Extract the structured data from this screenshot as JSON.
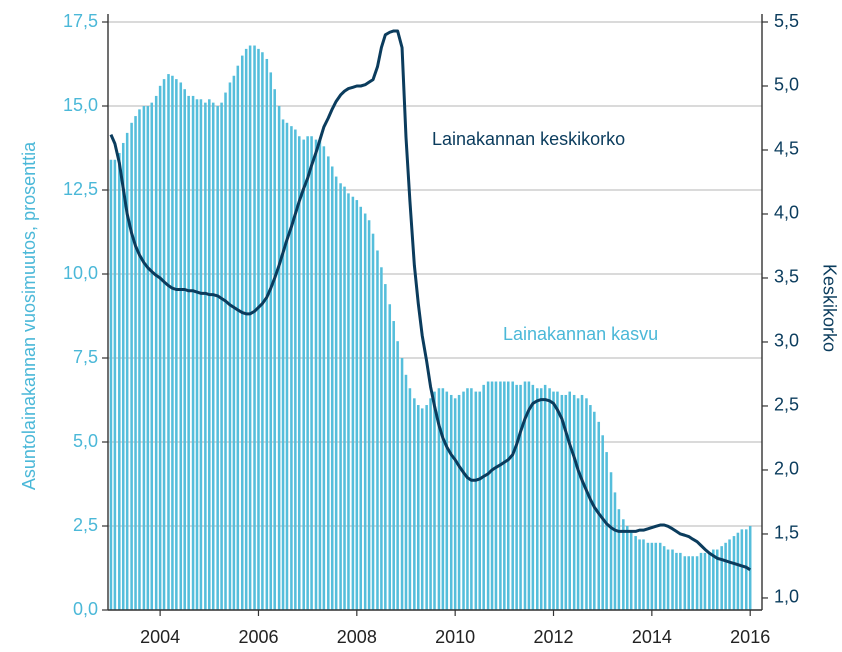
{
  "chart_data": {
    "type": "bar_line",
    "y_label": "Asuntolainakannan vuosimuutos, prosenttia",
    "y2_label": "Keskikorko",
    "annotations": [
      "Lainakannan keskikorko",
      "Lainakannan kasvu"
    ],
    "x": [
      2003,
      2003.08,
      2003.17,
      2003.25,
      2003.33,
      2003.42,
      2003.5,
      2003.58,
      2003.67,
      2003.75,
      2003.83,
      2003.92,
      2004,
      2004.08,
      2004.17,
      2004.25,
      2004.33,
      2004.42,
      2004.5,
      2004.58,
      2004.67,
      2004.75,
      2004.83,
      2004.92,
      2005,
      2005.08,
      2005.17,
      2005.25,
      2005.33,
      2005.42,
      2005.5,
      2005.58,
      2005.67,
      2005.75,
      2005.83,
      2005.92,
      2006,
      2006.08,
      2006.17,
      2006.25,
      2006.33,
      2006.42,
      2006.5,
      2006.58,
      2006.67,
      2006.75,
      2006.83,
      2006.92,
      2007,
      2007.08,
      2007.17,
      2007.25,
      2007.33,
      2007.42,
      2007.5,
      2007.58,
      2007.67,
      2007.75,
      2007.83,
      2007.92,
      2008,
      2008.08,
      2008.17,
      2008.25,
      2008.33,
      2008.42,
      2008.5,
      2008.58,
      2008.67,
      2008.75,
      2008.83,
      2008.92,
      2009,
      2009.08,
      2009.17,
      2009.25,
      2009.33,
      2009.42,
      2009.5,
      2009.58,
      2009.67,
      2009.75,
      2009.83,
      2009.92,
      2010,
      2010.08,
      2010.17,
      2010.25,
      2010.33,
      2010.42,
      2010.5,
      2010.58,
      2010.67,
      2010.75,
      2010.83,
      2010.92,
      2011,
      2011.08,
      2011.17,
      2011.25,
      2011.33,
      2011.42,
      2011.5,
      2011.58,
      2011.67,
      2011.75,
      2011.83,
      2011.92,
      2012,
      2012.08,
      2012.17,
      2012.25,
      2012.33,
      2012.42,
      2012.5,
      2012.58,
      2012.67,
      2012.75,
      2012.83,
      2012.92,
      2013,
      2013.08,
      2013.17,
      2013.25,
      2013.33,
      2013.42,
      2013.5,
      2013.58,
      2013.67,
      2013.75,
      2013.83,
      2013.92,
      2014,
      2014.08,
      2014.17,
      2014.25,
      2014.33,
      2014.42,
      2014.5,
      2014.58,
      2014.67,
      2014.75,
      2014.83,
      2014.92,
      2015,
      2015.08,
      2015.17,
      2015.25,
      2015.33,
      2015.42,
      2015.5,
      2015.58,
      2015.67,
      2015.75,
      2015.83,
      2015.92,
      2016
    ],
    "series": [
      {
        "name": "Lainakannan kasvu",
        "kind": "bar",
        "color": "#55bedb",
        "values": [
          13.4,
          13.4,
          13.6,
          13.9,
          14.2,
          14.5,
          14.7,
          14.9,
          15.0,
          15.0,
          15.1,
          15.3,
          15.6,
          15.8,
          15.95,
          15.9,
          15.8,
          15.7,
          15.5,
          15.3,
          15.3,
          15.2,
          15.2,
          15.1,
          15.2,
          15.1,
          15.0,
          15.1,
          15.4,
          15.7,
          15.9,
          16.2,
          16.5,
          16.7,
          16.8,
          16.8,
          16.7,
          16.6,
          16.4,
          16.0,
          15.5,
          15.0,
          14.6,
          14.5,
          14.4,
          14.3,
          14.1,
          14.0,
          14.1,
          14.1,
          14.0,
          14.0,
          13.8,
          13.5,
          13.2,
          12.9,
          12.7,
          12.6,
          12.4,
          12.3,
          12.2,
          12.0,
          11.8,
          11.6,
          11.2,
          10.7,
          10.2,
          9.7,
          9.1,
          8.6,
          8.0,
          7.5,
          7.0,
          6.6,
          6.3,
          6.1,
          6.0,
          6.1,
          6.3,
          6.5,
          6.6,
          6.6,
          6.5,
          6.4,
          6.3,
          6.4,
          6.5,
          6.6,
          6.6,
          6.5,
          6.5,
          6.7,
          6.8,
          6.8,
          6.8,
          6.8,
          6.8,
          6.8,
          6.8,
          6.7,
          6.7,
          6.8,
          6.8,
          6.7,
          6.6,
          6.6,
          6.7,
          6.6,
          6.5,
          6.5,
          6.4,
          6.4,
          6.5,
          6.4,
          6.3,
          6.4,
          6.3,
          6.1,
          5.9,
          5.6,
          5.2,
          4.7,
          4.1,
          3.5,
          3.0,
          2.7,
          2.5,
          2.3,
          2.2,
          2.1,
          2.1,
          2.0,
          2.0,
          2.0,
          2.0,
          1.9,
          1.8,
          1.8,
          1.7,
          1.7,
          1.6,
          1.6,
          1.6,
          1.6,
          1.7,
          1.7,
          1.7,
          1.8,
          1.8,
          1.9,
          2.0,
          2.1,
          2.2,
          2.3,
          2.4,
          2.4,
          2.5
        ]
      },
      {
        "name": "Lainakannan keskikorko",
        "kind": "line",
        "axis": "y2",
        "color": "#0b3c5d",
        "values": [
          4.62,
          4.55,
          4.4,
          4.2,
          4.0,
          3.85,
          3.75,
          3.68,
          3.62,
          3.58,
          3.55,
          3.52,
          3.5,
          3.47,
          3.44,
          3.42,
          3.41,
          3.41,
          3.41,
          3.4,
          3.4,
          3.39,
          3.38,
          3.38,
          3.37,
          3.37,
          3.36,
          3.34,
          3.32,
          3.29,
          3.27,
          3.25,
          3.23,
          3.22,
          3.22,
          3.24,
          3.27,
          3.3,
          3.35,
          3.42,
          3.5,
          3.6,
          3.7,
          3.8,
          3.9,
          4.0,
          4.1,
          4.2,
          4.28,
          4.38,
          4.48,
          4.58,
          4.68,
          4.75,
          4.82,
          4.88,
          4.93,
          4.96,
          4.98,
          4.99,
          5.0,
          5.0,
          5.01,
          5.03,
          5.05,
          5.15,
          5.3,
          5.4,
          5.42,
          5.43,
          5.43,
          5.3,
          4.6,
          4.1,
          3.6,
          3.3,
          3.05,
          2.85,
          2.65,
          2.5,
          2.35,
          2.25,
          2.18,
          2.12,
          2.08,
          2.03,
          1.98,
          1.94,
          1.92,
          1.92,
          1.93,
          1.95,
          1.97,
          2.0,
          2.02,
          2.04,
          2.06,
          2.08,
          2.12,
          2.2,
          2.3,
          2.4,
          2.47,
          2.52,
          2.54,
          2.55,
          2.55,
          2.54,
          2.52,
          2.47,
          2.4,
          2.3,
          2.2,
          2.1,
          2.0,
          1.92,
          1.84,
          1.77,
          1.71,
          1.66,
          1.62,
          1.58,
          1.55,
          1.53,
          1.52,
          1.52,
          1.52,
          1.52,
          1.52,
          1.53,
          1.53,
          1.54,
          1.55,
          1.56,
          1.57,
          1.57,
          1.56,
          1.54,
          1.52,
          1.5,
          1.49,
          1.48,
          1.46,
          1.44,
          1.41,
          1.38,
          1.35,
          1.33,
          1.31,
          1.3,
          1.29,
          1.28,
          1.27,
          1.26,
          1.25,
          1.24,
          1.22
        ]
      }
    ],
    "xlim": [
      2002.94,
      2016.24
    ],
    "xticks": [
      2004,
      2006,
      2008,
      2010,
      2012,
      2014,
      2016
    ],
    "ylim": [
      0,
      17.5
    ],
    "yticks": [
      {
        "value": 0,
        "label": "0,0"
      },
      {
        "value": 2.5,
        "label": "2,5"
      },
      {
        "value": 5,
        "label": "5,0"
      },
      {
        "value": 7.5,
        "label": "7,5"
      },
      {
        "value": 10,
        "label": "10,0"
      },
      {
        "value": 12.5,
        "label": "12,5"
      },
      {
        "value": 15,
        "label": "15,0"
      },
      {
        "value": 17.5,
        "label": "17,5"
      }
    ],
    "y2lim": [
      0.906,
      5.5
    ],
    "y2ticks": [
      {
        "value": 1,
        "label": "1,0"
      },
      {
        "value": 1.5,
        "label": "1,5"
      },
      {
        "value": 2,
        "label": "2,0"
      },
      {
        "value": 2.5,
        "label": "2,5"
      },
      {
        "value": 3,
        "label": "3,0"
      },
      {
        "value": 3.5,
        "label": "3,5"
      },
      {
        "value": 4,
        "label": "4,0"
      },
      {
        "value": 4.5,
        "label": "4,5"
      },
      {
        "value": 5,
        "label": "5,0"
      },
      {
        "value": 5.5,
        "label": "5,5"
      }
    ],
    "grid": true
  }
}
